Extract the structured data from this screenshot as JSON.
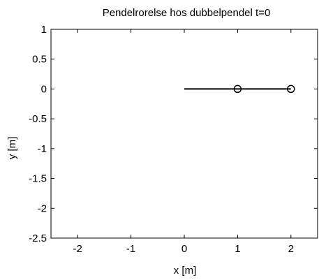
{
  "chart_data": {
    "type": "line",
    "title": "Pendelrorelse hos dubbelpendel t=0",
    "xlabel": "x [m]",
    "ylabel": "y [m]",
    "xlim": [
      -2.5,
      2.5
    ],
    "ylim": [
      -2.5,
      1
    ],
    "xticks": [
      -2,
      -1,
      0,
      1,
      2
    ],
    "yticks": [
      1,
      0.5,
      0,
      -0.5,
      -1,
      -1.5,
      -2,
      -2.5
    ],
    "xtick_labels": [
      "-2",
      "-1",
      "0",
      "1",
      "2"
    ],
    "ytick_labels": [
      "1",
      "0.5",
      "0",
      "-0.5",
      "-1",
      "-1.5",
      "-2",
      "-2.5"
    ],
    "grid": false,
    "series": [
      {
        "x": [
          0,
          1,
          2
        ],
        "y": [
          0,
          0,
          0
        ],
        "markers": [
          1,
          2
        ],
        "marker": "circle",
        "color": "#000000"
      }
    ]
  }
}
